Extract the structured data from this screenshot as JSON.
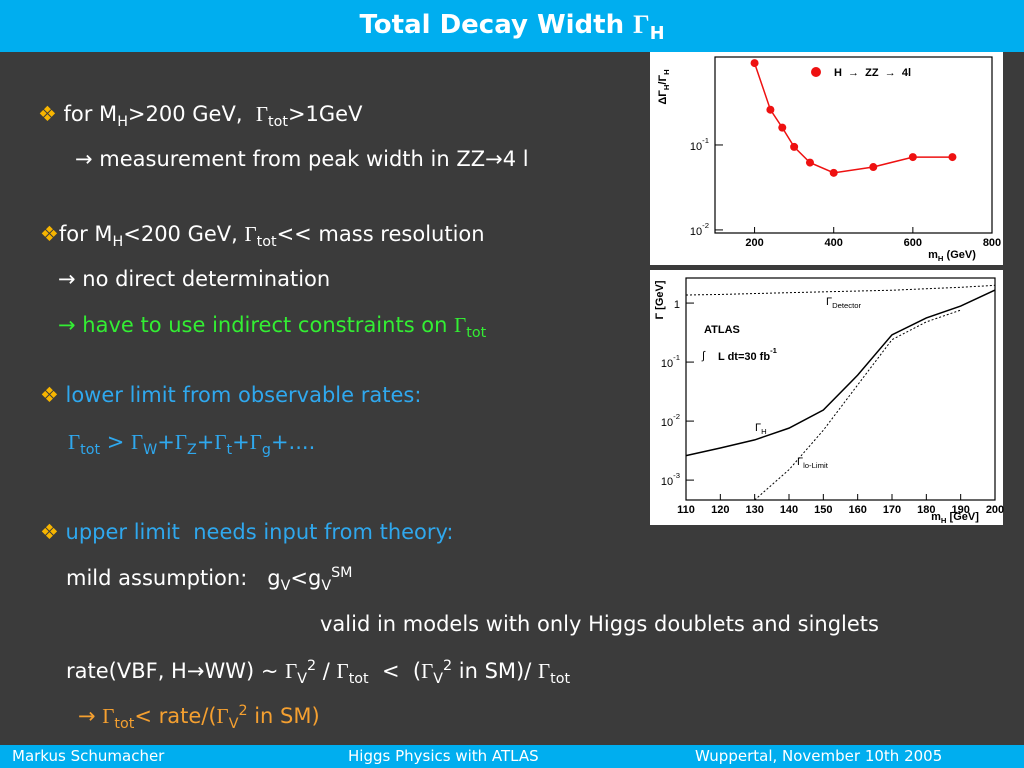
{
  "slide": {
    "title": [
      "Total Decay Width ",
      "Γ",
      "H"
    ],
    "lines": [
      [
        "❖",
        " for M",
        "H",
        ">200 GeV,  ",
        "Γ",
        "tot",
        ">1GeV"
      ],
      [
        "→ measurement from peak width in ZZ",
        "→",
        "4 l"
      ],
      [
        "❖",
        "for M",
        "H",
        "<200 GeV, ",
        "Γ",
        "tot",
        "<< mass resolution"
      ],
      [
        "→ no direct determination"
      ],
      [
        "→ have to use indirect constraints on ",
        "Γ",
        "tot"
      ],
      [
        "❖",
        " lower limit from observable rates:"
      ],
      [
        "Γ",
        "tot",
        " > ",
        "Γ",
        "W",
        "+",
        "Γ",
        "Z",
        "+",
        "Γ",
        "t",
        "+",
        "Γ",
        "g",
        "+...."
      ],
      [
        "❖",
        " upper limit  needs input from theory:"
      ],
      [
        "mild assumption:   g",
        "V",
        "<g",
        "V",
        "SM"
      ],
      [
        "valid in models with only Higgs doublets and singlets"
      ],
      [
        "rate(VBF, H",
        "→",
        "WW) ~ ",
        "Γ",
        "V",
        "2",
        " / ",
        "Γ",
        "tot",
        "  <  (",
        "Γ",
        "V",
        "2",
        " in SM)/ ",
        "Γ",
        "tot"
      ],
      [
        "→ ",
        "Γ",
        "tot",
        "< rate/(",
        "Γ",
        "V",
        "2",
        " in SM)"
      ]
    ],
    "footer": [
      "Markus  Schumacher",
      "Higgs Physics  with ATLAS",
      "Wuppertal, November 10th 2005"
    ]
  },
  "chart_data": [
    {
      "type": "scatter",
      "y_label": [
        "ΔΓ",
        "H",
        "/Γ",
        "H"
      ],
      "x_label": [
        "m",
        "H",
        " (GeV)"
      ],
      "x": [
        200,
        240,
        270,
        300,
        340,
        400,
        500,
        600,
        700
      ],
      "series": [
        {
          "name": "H  →  ZZ  →  4l",
          "color": "#ee1111",
          "values": [
            0.92,
            0.26,
            0.16,
            0.095,
            0.062,
            0.047,
            0.055,
            0.072,
            0.072
          ]
        }
      ],
      "xlim": [
        100,
        800
      ],
      "xticks": [
        200,
        400,
        600,
        800
      ],
      "ylim": [
        0.0092,
        1.085
      ],
      "log_y": true,
      "yticks": [
        {
          "value": 0.1,
          "label": "10",
          "exponent": "-1"
        },
        {
          "value": 0.01,
          "label": "10",
          "exponent": "-2"
        }
      ]
    },
    {
      "type": "line",
      "y_label": "Γ [GeV]",
      "x_label": [
        "m",
        "H",
        " [GeV]"
      ],
      "annotations": [
        "ATLAS",
        "∫",
        "L dt=30 fb",
        "-1"
      ],
      "x": [
        110,
        120,
        130,
        140,
        150,
        160,
        170,
        180,
        190,
        200
      ],
      "series": [
        {
          "name": "Γ",
          "subscript": "Detector",
          "color": "#000000",
          "style": "dotted",
          "values": [
            1.37,
            1.4,
            1.45,
            1.5,
            1.55,
            1.6,
            1.65,
            1.75,
            1.85,
            2.0
          ]
        },
        {
          "name": "Γ",
          "subscript": "H",
          "color": "#000000",
          "style": "solid",
          "values": [
            0.0026,
            0.0035,
            0.0048,
            0.0076,
            0.0154,
            0.06,
            0.29,
            0.56,
            0.89,
            1.66
          ]
        },
        {
          "name": "Γ",
          "subscript": "lo-Limit",
          "color": "#000000",
          "style": "dotted",
          "values": [
            null,
            null,
            0.00046,
            0.0015,
            0.007,
            0.041,
            0.24,
            0.48,
            0.76,
            null
          ]
        }
      ],
      "xlim": [
        110,
        200
      ],
      "xticks": [
        110,
        120,
        130,
        140,
        150,
        160,
        170,
        180,
        190,
        200
      ],
      "ylim": [
        0.00046,
        2.66
      ],
      "log_y": true,
      "yticks": [
        1,
        {
          "value": 0.1,
          "label": "10",
          "exponent": "-1"
        },
        {
          "value": 0.01,
          "label": "10",
          "exponent": "-2"
        },
        {
          "value": 0.001,
          "label": "10",
          "exponent": "-3"
        }
      ]
    }
  ]
}
